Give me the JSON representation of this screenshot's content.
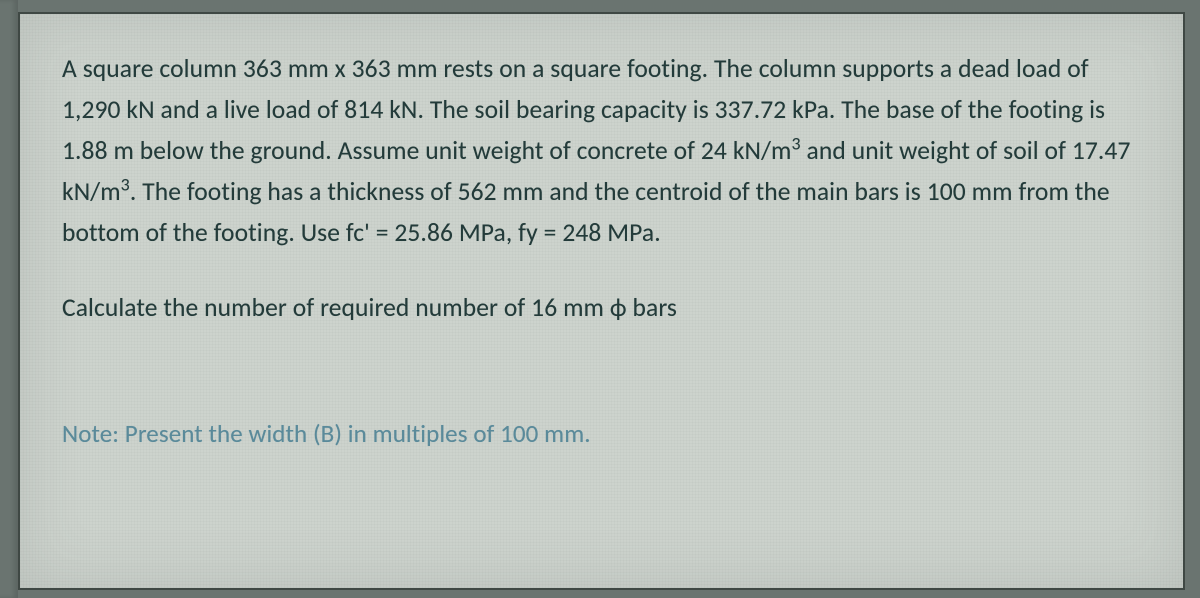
{
  "background_outer": "#6a7470",
  "panel_bg": "#cdd3cd",
  "panel_border": "#3f4844",
  "text_color": "#233b3a",
  "note_color": "#5a8a9a",
  "para1_a": "A square column 363 mm x 363 mm rests on a square footing. The column supports a dead load of 1,290 kN and a live load of 814 kN. The soil bearing capacity is 337.72 kPa. The base of the footing is 1.88 m below the ground. Assume unit weight of concrete of 24 kN/m",
  "sup3_a": "3",
  "para1_b": " and unit weight of soil of 17.47 kN/m",
  "sup3_b": "3",
  "para1_c": ". The footing has a thickness of 562 mm and the centroid of the main bars is 100 mm from the bottom of the footing. Use fc' = 25.86 MPa, fy = 248 MPa.",
  "ask": "Calculate the number of required number of 16 mm ϕ bars",
  "note": "Note: Present the width (B) in multiples of 100 mm."
}
